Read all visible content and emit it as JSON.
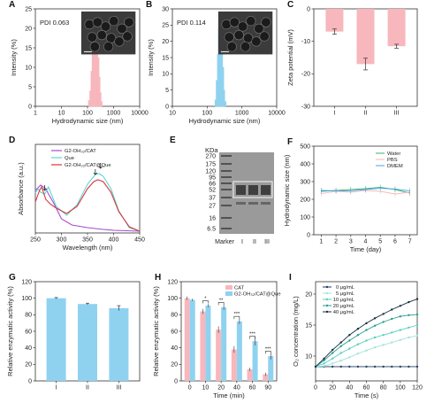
{
  "colors": {
    "pink": "#f7b7bd",
    "blue": "#8fd2f0",
    "cyan": "#5fd6cf",
    "purple": "#a64bd1",
    "red": "#d9363e",
    "green": "#37b36e",
    "dmem_blue": "#4aa3df"
  },
  "chart_data": [
    {
      "id": "A",
      "panel_label": "A",
      "type": "bar",
      "xscale": "log",
      "xlim": [
        1,
        10000
      ],
      "ylim": [
        0,
        25
      ],
      "xticks": [
        "1",
        "10",
        "100",
        "1000",
        "10000"
      ],
      "yticks": [
        "0",
        "5",
        "10",
        "15",
        "20",
        "25"
      ],
      "xlabel": "Hydrodynamic size (nm)",
      "ylabel": "Intensity (%)",
      "annotation": "PDI 0.063",
      "x": [
        120,
        135,
        150,
        165,
        185,
        205,
        225,
        250,
        275,
        300,
        330
      ],
      "values": [
        1.5,
        4,
        9,
        14.5,
        18.5,
        19.5,
        17.5,
        12.5,
        7.5,
        3.5,
        1.2
      ]
    },
    {
      "id": "B",
      "panel_label": "B",
      "type": "bar",
      "xscale": "log",
      "xlim": [
        10,
        10000
      ],
      "ylim": [
        0,
        30
      ],
      "xticks": [
        "10",
        "100",
        "1000",
        "10000"
      ],
      "yticks": [
        "0",
        "5",
        "10",
        "15",
        "20",
        "25",
        "30"
      ],
      "xlabel": "Hydrodynamic size (nm)",
      "ylabel": "Intensity (%)",
      "annotation": "PDI 0.114",
      "x": [
        180,
        195,
        210,
        225,
        240,
        260,
        280,
        300,
        325
      ],
      "values": [
        2,
        8,
        16,
        24,
        26,
        20,
        12,
        5,
        1.5
      ]
    },
    {
      "id": "C",
      "panel_label": "C",
      "type": "bar",
      "categories": [
        "I",
        "II",
        "III"
      ],
      "values": [
        -7,
        -17,
        -11.5
      ],
      "errors": [
        0.8,
        1.8,
        0.6
      ],
      "ylim": [
        0,
        -30
      ],
      "yticks": [
        "-30",
        "-20",
        "-10",
        "0"
      ],
      "xlabel": "",
      "ylabel": "Zeta potential (mV)"
    },
    {
      "id": "D",
      "panel_label": "D",
      "type": "line",
      "xlim": [
        250,
        450
      ],
      "ylim": [
        0,
        1
      ],
      "xticks": [
        "250",
        "300",
        "350",
        "400",
        "450"
      ],
      "xlabel": "Wavelength (nm)",
      "ylabel": "Absorbance (a.u.)",
      "series": [
        {
          "name": "G2-OH₃₂/CAT",
          "x": [
            250,
            260,
            270,
            275,
            285,
            300,
            320,
            350,
            380,
            400,
            450
          ],
          "values": [
            0.48,
            0.54,
            0.5,
            0.44,
            0.34,
            0.16,
            0.09,
            0.06,
            0.04,
            0.03,
            0.02
          ]
        },
        {
          "name": "Que",
          "x": [
            250,
            255,
            260,
            268,
            275,
            290,
            310,
            330,
            350,
            365,
            372,
            380,
            395,
            410,
            430,
            450
          ],
          "values": [
            0.45,
            0.5,
            0.46,
            0.44,
            0.52,
            0.3,
            0.2,
            0.32,
            0.55,
            0.66,
            0.67,
            0.64,
            0.5,
            0.25,
            0.06,
            0.02
          ]
        },
        {
          "name": "G2-OH₃₂/CAT@Que",
          "x": [
            250,
            258,
            262,
            270,
            278,
            290,
            310,
            330,
            350,
            362,
            370,
            380,
            395,
            410,
            430,
            450
          ],
          "values": [
            0.35,
            0.48,
            0.52,
            0.38,
            0.33,
            0.28,
            0.22,
            0.3,
            0.5,
            0.58,
            0.6,
            0.58,
            0.46,
            0.24,
            0.07,
            0.02
          ]
        }
      ]
    },
    {
      "id": "E",
      "panel_label": "E",
      "type": "gel",
      "unit_label": "KDa",
      "markers": [
        "270",
        "175",
        "120",
        "95",
        "66",
        "52",
        "37",
        "27",
        "16",
        "6.5"
      ],
      "lanes": [
        "Marker",
        "I",
        "II",
        "III"
      ]
    },
    {
      "id": "F",
      "panel_label": "F",
      "type": "line",
      "x": [
        1,
        2,
        3,
        4,
        5,
        6,
        7
      ],
      "xlim": [
        0.5,
        7.5
      ],
      "ylim": [
        0,
        500
      ],
      "xticks": [
        "1",
        "2",
        "3",
        "4",
        "5",
        "6",
        "7"
      ],
      "yticks": [
        "0",
        "100",
        "200",
        "300",
        "400",
        "500"
      ],
      "xlabel": "Time (day)",
      "ylabel": "Hydrodynamic size (nm)",
      "series": [
        {
          "name": "Water",
          "values": [
            245,
            250,
            255,
            260,
            268,
            255,
            235
          ]
        },
        {
          "name": "PBS",
          "values": [
            232,
            245,
            240,
            250,
            245,
            230,
            240
          ]
        },
        {
          "name": "DMEM",
          "values": [
            250,
            248,
            248,
            255,
            262,
            258,
            248
          ]
        }
      ]
    },
    {
      "id": "G",
      "panel_label": "G",
      "type": "bar",
      "categories": [
        "I",
        "II",
        "III"
      ],
      "values": [
        100,
        93,
        88
      ],
      "errors": [
        0.8,
        1,
        3
      ],
      "ylim": [
        0,
        120
      ],
      "yticks": [
        "0",
        "20",
        "40",
        "60",
        "80",
        "100",
        "120"
      ],
      "xlabel": "",
      "ylabel": "Relative enzymatic activity (%)"
    },
    {
      "id": "H",
      "panel_label": "H",
      "type": "bar",
      "categories": [
        "0",
        "10",
        "20",
        "40",
        "60",
        "90"
      ],
      "series": [
        {
          "name": "CAT",
          "values": [
            100,
            84,
            62,
            38,
            14,
            8
          ],
          "errors": [
            2,
            3,
            4,
            4,
            2,
            2
          ]
        },
        {
          "name": "G2-OH₃₂/CAT@Que",
          "values": [
            98,
            91,
            89,
            72,
            48,
            30
          ],
          "errors": [
            1.5,
            2,
            3,
            3,
            5,
            4
          ]
        }
      ],
      "significance": [
        "",
        "*",
        "**",
        "***",
        "***",
        "***"
      ],
      "ylim": [
        0,
        120
      ],
      "yticks": [
        "0",
        "20",
        "40",
        "60",
        "80",
        "100",
        "120"
      ],
      "xlabel": "Time (min)",
      "ylabel": "Relative enzymatic activity (%)"
    },
    {
      "id": "I",
      "panel_label": "I",
      "type": "line",
      "x": [
        0,
        10,
        20,
        30,
        40,
        50,
        60,
        70,
        80,
        90,
        100,
        110,
        120
      ],
      "xlim": [
        0,
        120
      ],
      "ylim": [
        6,
        22
      ],
      "xticks": [
        "0",
        "20",
        "40",
        "60",
        "80",
        "100",
        "120"
      ],
      "yticks": [
        "10",
        "15",
        "20"
      ],
      "xlabel": "Time (s)",
      "ylabel": "O₂ concentration (mg/L)",
      "series": [
        {
          "name": "0 μg/mL",
          "values": [
            8.3,
            8.3,
            8.3,
            8.3,
            8.3,
            8.3,
            8.3,
            8.3,
            8.3,
            8.3,
            8.3,
            8.3,
            8.3
          ]
        },
        {
          "name": "5 μg/mL",
          "values": [
            8.3,
            8.4,
            8.8,
            9.3,
            9.8,
            10.4,
            10.9,
            11.4,
            11.8,
            12.2,
            12.6,
            13,
            13.3
          ]
        },
        {
          "name": "10 μg/mL",
          "values": [
            8.3,
            8.8,
            9.6,
            10.5,
            11.2,
            11.9,
            12.5,
            13,
            13.4,
            13.8,
            14.2,
            14.6,
            15
          ]
        },
        {
          "name": "20 μg/mL",
          "values": [
            8.3,
            9.3,
            10.5,
            11.6,
            12.5,
            13.4,
            14.2,
            14.9,
            15.5,
            16,
            16.4,
            16.6,
            16.7
          ]
        },
        {
          "name": "40 μg/mL",
          "values": [
            8.3,
            9.6,
            11,
            12.2,
            13.4,
            14.4,
            15.3,
            16.1,
            16.8,
            17.5,
            18.1,
            18.7,
            19.2
          ]
        }
      ]
    }
  ]
}
